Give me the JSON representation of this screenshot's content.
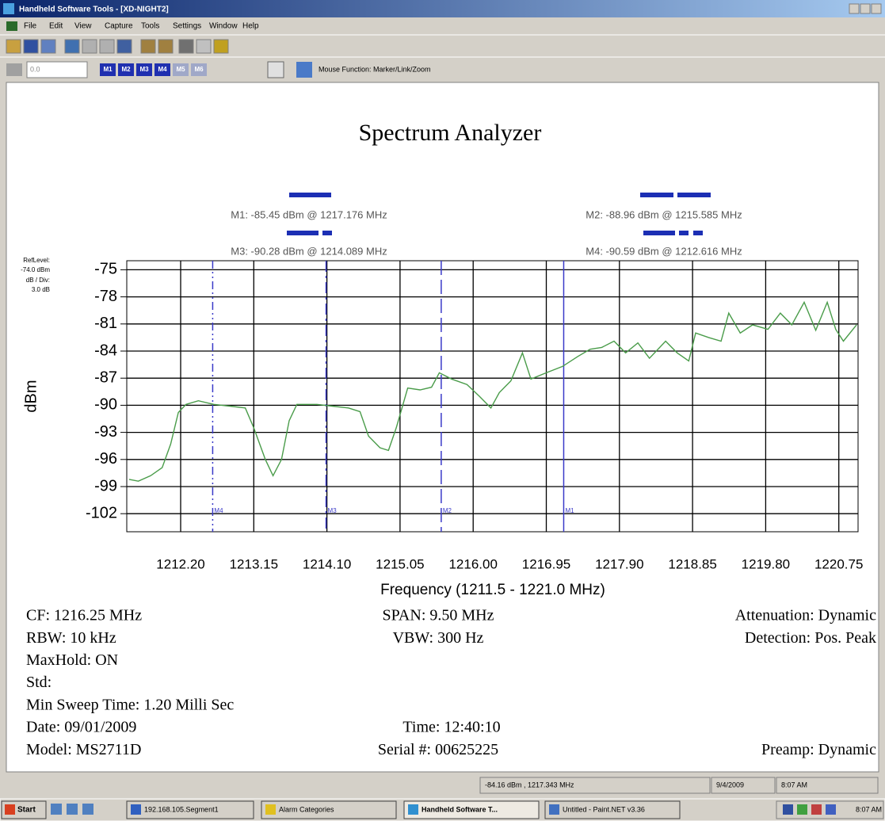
{
  "window": {
    "title": "Handheld Software Tools - [XD-NIGHT2]"
  },
  "menu": [
    "File",
    "Edit",
    "View",
    "Capture",
    "Tools",
    "Settings",
    "Window",
    "Help"
  ],
  "toolbar": {
    "input": "0.0",
    "marker_buttons": [
      "M1",
      "M2",
      "M3",
      "M4",
      "M5",
      "M6"
    ],
    "mouse_function": "Mouse Function: Marker/Link/Zoom"
  },
  "chart_data": {
    "type": "line",
    "title": "Spectrum Analyzer",
    "x_label": "Frequency (1211.5 - 1221.0 MHz)",
    "y_label": "dBm",
    "ref_level": {
      "label": "RefLevel:",
      "value": "-74.0 dBm"
    },
    "scale": {
      "label": "dB / Div:",
      "value": "3.0 dB"
    },
    "xlim": [
      1211.5,
      1221.0
    ],
    "ylim": [
      -104,
      -74
    ],
    "xticks": [
      {
        "value": 1212.2,
        "label": "1212.20"
      },
      1213.15,
      {
        "value": 1214.1,
        "label": "1214.10"
      },
      1215.05,
      {
        "value": 1216.0,
        "label": "1216.00"
      },
      1216.95,
      {
        "value": 1217.9,
        "label": "1217.90"
      },
      1218.85,
      {
        "value": 1219.8,
        "label": "1219.80"
      },
      1220.75
    ],
    "yticks": [
      -75,
      -78,
      -81,
      -84,
      -87,
      -90,
      -93,
      -96,
      -99,
      -102
    ],
    "grid": true,
    "x": [
      1211.53,
      1211.65,
      1211.81,
      1211.96,
      1212.07,
      1212.17,
      1212.27,
      1212.43,
      1212.63,
      1212.84,
      1213.04,
      1213.15,
      1213.3,
      1213.4,
      1213.51,
      1213.61,
      1213.71,
      1213.97,
      1214.17,
      1214.38,
      1214.53,
      1214.64,
      1214.79,
      1214.9,
      1215.0,
      1215.15,
      1215.31,
      1215.46,
      1215.56,
      1215.72,
      1215.92,
      1216.08,
      1216.23,
      1216.34,
      1216.49,
      1216.64,
      1216.75,
      1216.95,
      1217.16,
      1217.36,
      1217.52,
      1217.67,
      1217.83,
      1217.98,
      1218.14,
      1218.29,
      1218.5,
      1218.65,
      1218.8,
      1218.89,
      1219.06,
      1219.22,
      1219.32,
      1219.47,
      1219.63,
      1219.83,
      1219.99,
      1220.14,
      1220.3,
      1220.45,
      1220.6,
      1220.71,
      1220.81,
      1220.98
    ],
    "series": [
      {
        "color": "#4a9c4a",
        "values": [
          -98.2,
          -98.4,
          -97.8,
          -96.9,
          -94.3,
          -90.8,
          -89.9,
          -89.5,
          -89.9,
          -90.1,
          -90.3,
          -92.5,
          -96,
          -97.8,
          -96,
          -91.7,
          -89.9,
          -89.9,
          -90.1,
          -90.3,
          -90.7,
          -93.4,
          -94.7,
          -95,
          -92.5,
          -88.1,
          -88.3,
          -88,
          -86.4,
          -87.1,
          -87.7,
          -89,
          -90.3,
          -88.6,
          -87.3,
          -84.2,
          -87.1,
          -86.4,
          -85.7,
          -84.6,
          -83.8,
          -83.6,
          -82.9,
          -84.2,
          -83.1,
          -84.8,
          -82.9,
          -84.2,
          -85.1,
          -82,
          -82.5,
          -82.9,
          -79.8,
          -82,
          -81.1,
          -81.6,
          -79.8,
          -81.1,
          -78.6,
          -81.7,
          -78.6,
          -81.6,
          -82.9,
          -81.1
        ]
      }
    ],
    "markers": [
      {
        "name": "M1",
        "x": 1217.176,
        "label": "M1: -85.45 dBm @ 1217.176 MHz"
      },
      {
        "name": "M2",
        "x": 1215.585,
        "label": "M2: -88.96 dBm @ 1215.585 MHz"
      },
      {
        "name": "M3",
        "x": 1214.089,
        "label": "M3: -90.28 dBm @ 1214.089 MHz"
      },
      {
        "name": "M4",
        "x": 1212.616,
        "label": "M4: -90.59 dBm @ 1212.616 MHz"
      }
    ],
    "marker_color": "#3a3ac8"
  },
  "settings": {
    "left": [
      "CF: 1216.25 MHz",
      "RBW: 10 kHz",
      "MaxHold: ON",
      "Std:",
      "Min Sweep Time: 1.20 Milli Sec",
      "Date: 09/01/2009",
      "Model: MS2711D"
    ],
    "center": [
      "SPAN: 9.50 MHz",
      "VBW: 300 Hz",
      "Time: 12:40:10",
      "Serial #: 00625225"
    ],
    "right": [
      "Attenuation: Dynamic",
      "Detection: Pos. Peak",
      "Preamp: Dynamic"
    ]
  },
  "status_bar": [
    "-84.16 dBm , 1217.343 MHz",
    "9/4/2009",
    "8:07 AM"
  ],
  "taskbar": {
    "start": "Start",
    "items": [
      "192.168.105.Segment1",
      "Alarm Categories",
      "Handheld Software T...",
      "Untitled - Paint.NET v3.36"
    ],
    "clock": "8:07 AM"
  }
}
